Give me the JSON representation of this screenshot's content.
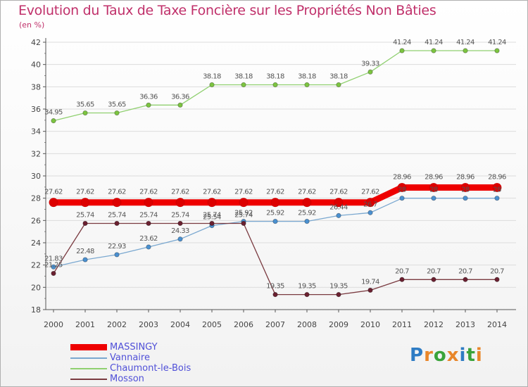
{
  "title": "Evolution du Taux de Taxe Foncière sur les Propriétés Non Bâties",
  "subtitle": "(en %)",
  "logo": {
    "text": "Proxiti",
    "colors": [
      "#2e7cc4",
      "#e8862a",
      "#3aa33a",
      "#e8862a",
      "#2e7cc4",
      "#3aa33a",
      "#e8862a"
    ]
  },
  "chart_data": {
    "type": "line",
    "x": [
      2000,
      2001,
      2002,
      2003,
      2004,
      2005,
      2006,
      2007,
      2008,
      2009,
      2010,
      2011,
      2012,
      2013,
      2014
    ],
    "ylim": [
      18,
      42
    ],
    "yticks": [
      18,
      20,
      22,
      24,
      26,
      28,
      30,
      32,
      34,
      36,
      38,
      40,
      42
    ],
    "grid": "horizontal",
    "legend": "bottom-left",
    "series": [
      {
        "name": "Chaumont-le-Bois",
        "color": "#90d070",
        "marker": "#7cc440",
        "width": 1.3,
        "values": [
          34.95,
          35.65,
          35.65,
          36.36,
          36.36,
          38.18,
          38.18,
          38.18,
          38.18,
          38.18,
          39.33,
          41.24,
          41.24,
          41.24,
          41.24
        ],
        "labels": [
          "34.95",
          "35.65",
          "35.65",
          "36.36",
          "36.36",
          "38.18",
          "38.18",
          "38.18",
          "38.18",
          "38.18",
          "39.33",
          "41.24",
          "41.24",
          "41.24",
          "41.24"
        ]
      },
      {
        "name": "Vannaire",
        "color": "#7aa8d0",
        "marker": "#4a90d0",
        "width": 1.3,
        "values": [
          21.83,
          22.48,
          22.93,
          23.62,
          24.33,
          25.54,
          25.92,
          25.92,
          25.92,
          26.44,
          26.7,
          28.0,
          28.0,
          28.0,
          28.0
        ],
        "labels": [
          "21.83",
          "22.48",
          "22.93",
          "23.62",
          "24.33",
          "25.54",
          "25.92",
          "25.92",
          "25.92",
          "26.44",
          "26.7",
          "28",
          "28",
          "28",
          "28"
        ]
      },
      {
        "name": "Mosson",
        "color": "#7a3a40",
        "marker": "#6a2030",
        "width": 1.3,
        "values": [
          21.25,
          25.74,
          25.74,
          25.74,
          25.74,
          25.74,
          25.74,
          19.35,
          19.35,
          19.35,
          19.74,
          20.7,
          20.7,
          20.7,
          20.7
        ],
        "labels": [
          "21.25",
          "25.74",
          "25.74",
          "25.74",
          "25.74",
          "25.74",
          "25.74",
          "19.35",
          "19.35",
          "19.35",
          "19.74",
          "20.7",
          "20.7",
          "20.7",
          "20.7"
        ]
      },
      {
        "name": "MASSINGY",
        "color": "#ee0000",
        "marker": "#dd0000",
        "width": 9,
        "values": [
          27.62,
          27.62,
          27.62,
          27.62,
          27.62,
          27.62,
          27.62,
          27.62,
          27.62,
          27.62,
          27.62,
          28.96,
          28.96,
          28.96,
          28.96
        ],
        "labels": [
          "27.62",
          "27.62",
          "27.62",
          "27.62",
          "27.62",
          "27.62",
          "27.62",
          "27.62",
          "27.62",
          "27.62",
          "27.62",
          "28.96",
          "28.96",
          "28.96",
          "28.96"
        ]
      }
    ],
    "legend_order": [
      "MASSINGY",
      "Vannaire",
      "Chaumont-le-Bois",
      "Mosson"
    ]
  }
}
